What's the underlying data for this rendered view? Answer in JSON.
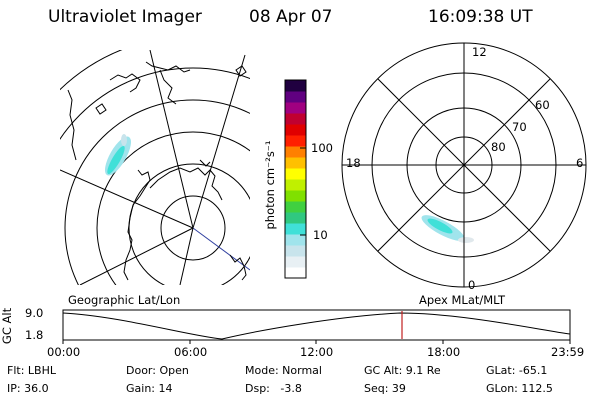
{
  "header": {
    "title": "Ultraviolet Imager",
    "date": "08 Apr 07",
    "time": "16:09:38 UT"
  },
  "colorbar": {
    "label": "photon cm⁻²s⁻¹",
    "ticks": [
      "100",
      "10"
    ],
    "scale": "log",
    "colors": [
      "#ffffff",
      "#e8f0f4",
      "#c8e4ec",
      "#a0e4ec",
      "#40e0d8",
      "#30c880",
      "#40d040",
      "#80e000",
      "#c0f000",
      "#ffff00",
      "#ffc000",
      "#ff8000",
      "#ff2000",
      "#e00000",
      "#c00030",
      "#a00080",
      "#600080",
      "#200040"
    ]
  },
  "left_map": {
    "label": "Geographic Lat/Lon"
  },
  "right_map": {
    "label": "Apex MLat/MLT",
    "mlt_labels": [
      "12",
      "18",
      "6",
      "0"
    ],
    "mlat_labels": [
      "60",
      "70",
      "80"
    ]
  },
  "timeline": {
    "ylabel": "GC Alt",
    "y_ticks": [
      "9.0",
      "1.8"
    ],
    "x_ticks": [
      "00:00",
      "06:00",
      "12:00",
      "18:00",
      "23:59"
    ],
    "current_marker_color": "#c02020"
  },
  "info": {
    "filter": "Flt: LBHL",
    "door": "Door: Open",
    "mode": "Mode: Normal",
    "gc_alt": "GC Alt: 9.1 Re",
    "glat": "GLat: -65.1",
    "ip": "IP: 36.0",
    "gain": "Gain: 14",
    "dsp": "Dsp:   -3.8",
    "seq": "Seq: 39",
    "glon": "GLon: 112.5"
  }
}
